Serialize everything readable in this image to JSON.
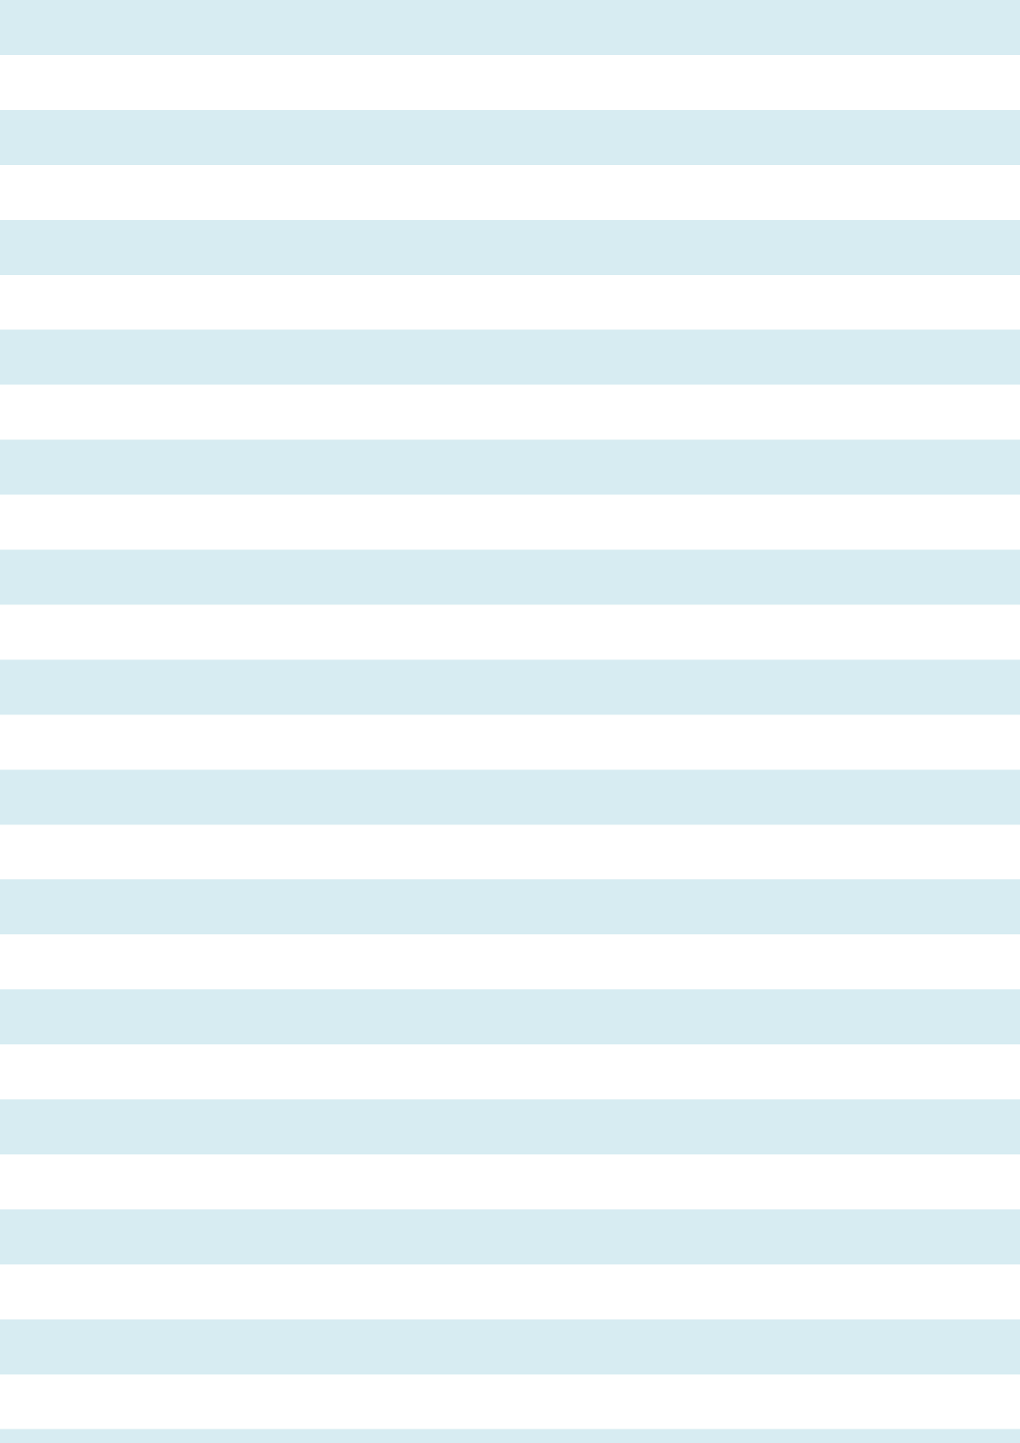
{
  "background": {
    "stripe_color": "#d7ecf2",
    "base_color": "#ffffff"
  }
}
